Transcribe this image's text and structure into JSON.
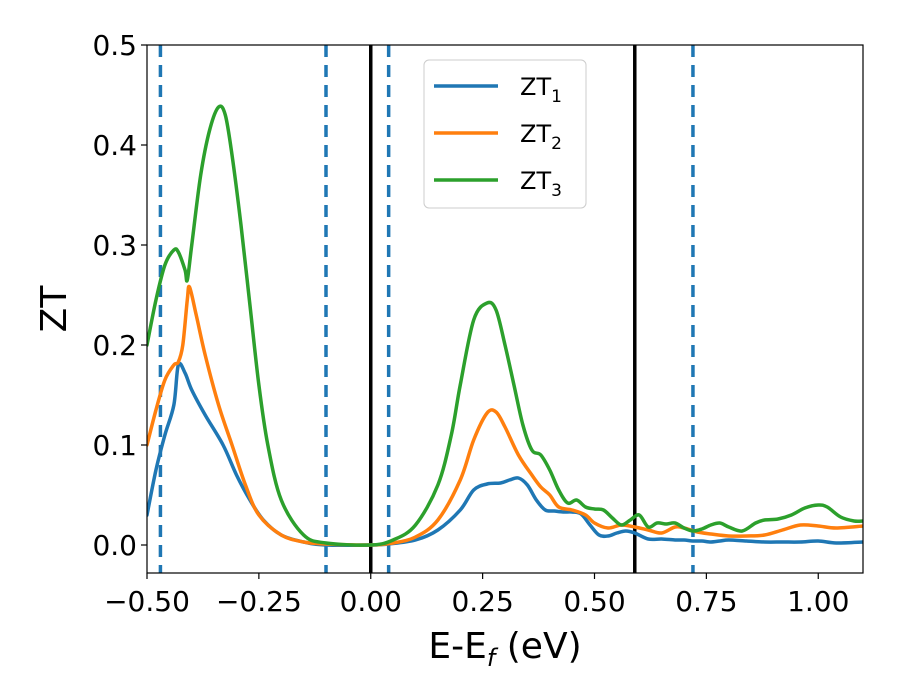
{
  "chart_data": {
    "type": "line",
    "xlabel": "E-E",
    "xlabel_sub": "f",
    "xlabel_unit": " (eV)",
    "ylabel": "ZT",
    "xlim": [
      -0.5,
      1.1
    ],
    "ylim": [
      -0.028,
      0.5
    ],
    "x_ticks": [
      -0.5,
      -0.25,
      0.0,
      0.25,
      0.5,
      0.75,
      1.0
    ],
    "x_tick_labels": [
      "−0.50",
      "−0.25",
      "0.00",
      "0.25",
      "0.50",
      "0.75",
      "1.00"
    ],
    "y_ticks": [
      0.0,
      0.1,
      0.2,
      0.3,
      0.4,
      0.5
    ],
    "y_tick_labels": [
      "0.0",
      "0.1",
      "0.2",
      "0.3",
      "0.4",
      "0.5"
    ],
    "grid": false,
    "legend_placement": "top-center",
    "vlines_solid": [
      0.0,
      0.59
    ],
    "vlines_dashed": [
      -0.47,
      -0.1,
      0.04,
      0.72
    ],
    "colors": {
      "solid_line": "#000000",
      "dashed_line": "#1f77b4"
    },
    "series": [
      {
        "name": "ZT",
        "sub": "1",
        "color": "#1f77b4",
        "points": [
          [
            -0.5,
            0.03
          ],
          [
            -0.48,
            0.075
          ],
          [
            -0.46,
            0.11
          ],
          [
            -0.44,
            0.14
          ],
          [
            -0.43,
            0.18
          ],
          [
            -0.415,
            0.172
          ],
          [
            -0.4,
            0.155
          ],
          [
            -0.37,
            0.13
          ],
          [
            -0.33,
            0.1
          ],
          [
            -0.3,
            0.07
          ],
          [
            -0.27,
            0.045
          ],
          [
            -0.24,
            0.025
          ],
          [
            -0.2,
            0.01
          ],
          [
            -0.15,
            0.003
          ],
          [
            -0.1,
            0.0
          ],
          [
            0.0,
            0.0
          ],
          [
            0.04,
            0.001
          ],
          [
            0.1,
            0.005
          ],
          [
            0.15,
            0.015
          ],
          [
            0.2,
            0.035
          ],
          [
            0.23,
            0.055
          ],
          [
            0.26,
            0.061
          ],
          [
            0.29,
            0.062
          ],
          [
            0.31,
            0.065
          ],
          [
            0.33,
            0.067
          ],
          [
            0.35,
            0.06
          ],
          [
            0.37,
            0.045
          ],
          [
            0.39,
            0.035
          ],
          [
            0.41,
            0.034
          ],
          [
            0.43,
            0.033
          ],
          [
            0.45,
            0.033
          ],
          [
            0.47,
            0.031
          ],
          [
            0.49,
            0.02
          ],
          [
            0.51,
            0.01
          ],
          [
            0.53,
            0.009
          ],
          [
            0.55,
            0.012
          ],
          [
            0.57,
            0.014
          ],
          [
            0.59,
            0.012
          ],
          [
            0.62,
            0.006
          ],
          [
            0.65,
            0.006
          ],
          [
            0.68,
            0.005
          ],
          [
            0.7,
            0.005
          ],
          [
            0.72,
            0.004
          ],
          [
            0.74,
            0.004
          ],
          [
            0.76,
            0.003
          ],
          [
            0.78,
            0.004
          ],
          [
            0.8,
            0.005
          ],
          [
            0.84,
            0.004
          ],
          [
            0.88,
            0.003
          ],
          [
            0.92,
            0.003
          ],
          [
            0.96,
            0.003
          ],
          [
            1.0,
            0.004
          ],
          [
            1.04,
            0.002
          ],
          [
            1.1,
            0.003
          ]
        ]
      },
      {
        "name": "ZT",
        "sub": "2",
        "color": "#ff7f0e",
        "points": [
          [
            -0.5,
            0.1
          ],
          [
            -0.48,
            0.135
          ],
          [
            -0.46,
            0.165
          ],
          [
            -0.44,
            0.18
          ],
          [
            -0.43,
            0.183
          ],
          [
            -0.42,
            0.2
          ],
          [
            -0.41,
            0.245
          ],
          [
            -0.405,
            0.258
          ],
          [
            -0.39,
            0.23
          ],
          [
            -0.37,
            0.19
          ],
          [
            -0.34,
            0.14
          ],
          [
            -0.31,
            0.1
          ],
          [
            -0.28,
            0.06
          ],
          [
            -0.25,
            0.03
          ],
          [
            -0.2,
            0.01
          ],
          [
            -0.15,
            0.003
          ],
          [
            -0.1,
            0.001
          ],
          [
            0.0,
            0.0
          ],
          [
            0.05,
            0.002
          ],
          [
            0.1,
            0.008
          ],
          [
            0.15,
            0.025
          ],
          [
            0.2,
            0.065
          ],
          [
            0.23,
            0.105
          ],
          [
            0.26,
            0.132
          ],
          [
            0.28,
            0.133
          ],
          [
            0.3,
            0.118
          ],
          [
            0.33,
            0.09
          ],
          [
            0.36,
            0.07
          ],
          [
            0.38,
            0.058
          ],
          [
            0.4,
            0.05
          ],
          [
            0.42,
            0.038
          ],
          [
            0.45,
            0.035
          ],
          [
            0.48,
            0.03
          ],
          [
            0.5,
            0.022
          ],
          [
            0.53,
            0.017
          ],
          [
            0.56,
            0.02
          ],
          [
            0.59,
            0.018
          ],
          [
            0.62,
            0.015
          ],
          [
            0.65,
            0.012
          ],
          [
            0.68,
            0.018
          ],
          [
            0.7,
            0.017
          ],
          [
            0.73,
            0.013
          ],
          [
            0.76,
            0.011
          ],
          [
            0.8,
            0.009
          ],
          [
            0.84,
            0.009
          ],
          [
            0.88,
            0.01
          ],
          [
            0.92,
            0.015
          ],
          [
            0.96,
            0.02
          ],
          [
            1.0,
            0.019
          ],
          [
            1.04,
            0.017
          ],
          [
            1.1,
            0.019
          ]
        ]
      },
      {
        "name": "ZT",
        "sub": "3",
        "color": "#2ca02c",
        "points": [
          [
            -0.5,
            0.2
          ],
          [
            -0.48,
            0.245
          ],
          [
            -0.46,
            0.28
          ],
          [
            -0.44,
            0.295
          ],
          [
            -0.43,
            0.293
          ],
          [
            -0.415,
            0.275
          ],
          [
            -0.41,
            0.265
          ],
          [
            -0.4,
            0.3
          ],
          [
            -0.38,
            0.37
          ],
          [
            -0.36,
            0.415
          ],
          [
            -0.34,
            0.438
          ],
          [
            -0.325,
            0.43
          ],
          [
            -0.31,
            0.39
          ],
          [
            -0.29,
            0.32
          ],
          [
            -0.27,
            0.24
          ],
          [
            -0.25,
            0.16
          ],
          [
            -0.23,
            0.1
          ],
          [
            -0.2,
            0.045
          ],
          [
            -0.15,
            0.01
          ],
          [
            -0.1,
            0.002
          ],
          [
            0.0,
            0.0
          ],
          [
            0.05,
            0.005
          ],
          [
            0.1,
            0.02
          ],
          [
            0.15,
            0.06
          ],
          [
            0.18,
            0.11
          ],
          [
            0.2,
            0.16
          ],
          [
            0.23,
            0.225
          ],
          [
            0.26,
            0.242
          ],
          [
            0.28,
            0.235
          ],
          [
            0.3,
            0.2
          ],
          [
            0.32,
            0.16
          ],
          [
            0.34,
            0.12
          ],
          [
            0.36,
            0.095
          ],
          [
            0.38,
            0.09
          ],
          [
            0.4,
            0.075
          ],
          [
            0.42,
            0.055
          ],
          [
            0.44,
            0.042
          ],
          [
            0.46,
            0.045
          ],
          [
            0.48,
            0.038
          ],
          [
            0.5,
            0.036
          ],
          [
            0.52,
            0.035
          ],
          [
            0.54,
            0.027
          ],
          [
            0.56,
            0.02
          ],
          [
            0.58,
            0.025
          ],
          [
            0.6,
            0.03
          ],
          [
            0.62,
            0.018
          ],
          [
            0.64,
            0.022
          ],
          [
            0.66,
            0.021
          ],
          [
            0.68,
            0.022
          ],
          [
            0.7,
            0.017
          ],
          [
            0.72,
            0.014
          ],
          [
            0.74,
            0.016
          ],
          [
            0.76,
            0.02
          ],
          [
            0.78,
            0.022
          ],
          [
            0.8,
            0.018
          ],
          [
            0.83,
            0.014
          ],
          [
            0.86,
            0.022
          ],
          [
            0.88,
            0.025
          ],
          [
            0.91,
            0.026
          ],
          [
            0.94,
            0.03
          ],
          [
            0.97,
            0.037
          ],
          [
            1.0,
            0.04
          ],
          [
            1.02,
            0.038
          ],
          [
            1.05,
            0.028
          ],
          [
            1.08,
            0.024
          ],
          [
            1.1,
            0.024
          ]
        ]
      }
    ]
  }
}
